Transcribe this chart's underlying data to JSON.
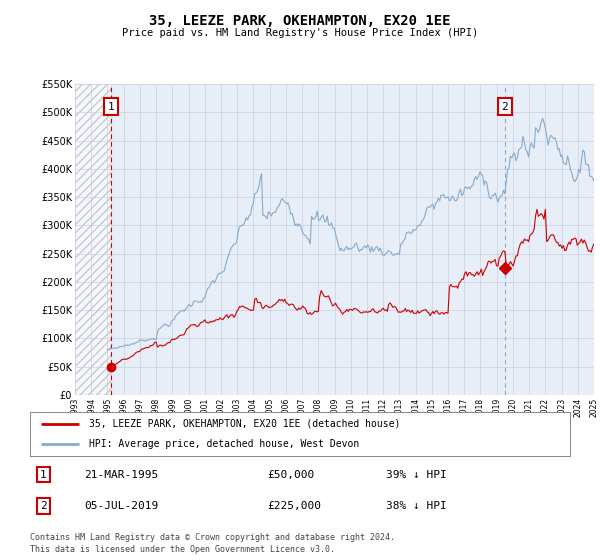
{
  "title": "35, LEEZE PARK, OKEHAMPTON, EX20 1EE",
  "subtitle": "Price paid vs. HM Land Registry's House Price Index (HPI)",
  "legend_line1": "35, LEEZE PARK, OKEHAMPTON, EX20 1EE (detached house)",
  "legend_line2": "HPI: Average price, detached house, West Devon",
  "footnote1": "Contains HM Land Registry data © Crown copyright and database right 2024.",
  "footnote2": "This data is licensed under the Open Government Licence v3.0.",
  "sale1_date": "21-MAR-1995",
  "sale1_price": "£50,000",
  "sale1_hpi": "39% ↓ HPI",
  "sale2_date": "05-JUL-2019",
  "sale2_price": "£225,000",
  "sale2_hpi": "38% ↓ HPI",
  "ylim": [
    0,
    550000
  ],
  "yticks": [
    0,
    50000,
    100000,
    150000,
    200000,
    250000,
    300000,
    350000,
    400000,
    450000,
    500000,
    550000
  ],
  "ytick_labels": [
    "£0",
    "£50K",
    "£100K",
    "£150K",
    "£200K",
    "£250K",
    "£300K",
    "£350K",
    "£400K",
    "£450K",
    "£500K",
    "£550K"
  ],
  "price_color": "#cc0000",
  "hpi_color": "#88aacc",
  "marker_box_color": "#cc0000",
  "sale1_x": 1995.22,
  "sale1_y": 50000,
  "sale2_x": 2019.5,
  "sale2_y": 225000,
  "grid_color": "#c8d0e0",
  "bg_color": "#e8eef8",
  "hatch_end_x": 1995.22,
  "vline1_color": "#cc0000",
  "vline2_color": "#88aacc",
  "xlim": [
    1993,
    2025
  ]
}
